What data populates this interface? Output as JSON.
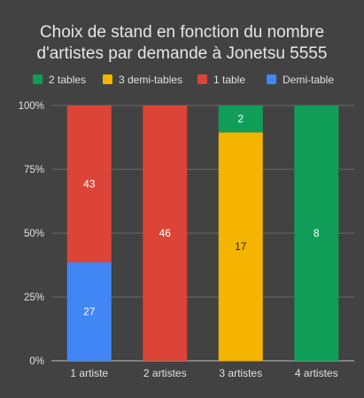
{
  "chart_data": {
    "type": "bar",
    "stacked": true,
    "normalized": true,
    "title_lines": [
      "Choix de stand en fonction du nombre",
      "d'artistes par demande à Jonetsu 5555"
    ],
    "categories": [
      "1 artiste",
      "2 artistes",
      "3 artistes",
      "4 artistes"
    ],
    "series": [
      {
        "name": "2 tables",
        "color": "#0f9d58",
        "values": [
          0,
          0,
          2,
          8
        ]
      },
      {
        "name": "3 demi-tables",
        "color": "#f4b400",
        "values": [
          0,
          0,
          17,
          0
        ]
      },
      {
        "name": "1 table",
        "color": "#db4437",
        "values": [
          43,
          46,
          0,
          0
        ]
      },
      {
        "name": "Demi-table",
        "color": "#4285f4",
        "values": [
          27,
          0,
          0,
          0
        ]
      }
    ],
    "stack_order_bottom_to_top": [
      "Demi-table",
      "1 table",
      "3 demi-tables",
      "2 tables"
    ],
    "yticks": [
      "0%",
      "25%",
      "50%",
      "75%",
      "100%"
    ],
    "ylim": [
      0,
      100
    ],
    "grid": true,
    "legend_position": "top"
  }
}
